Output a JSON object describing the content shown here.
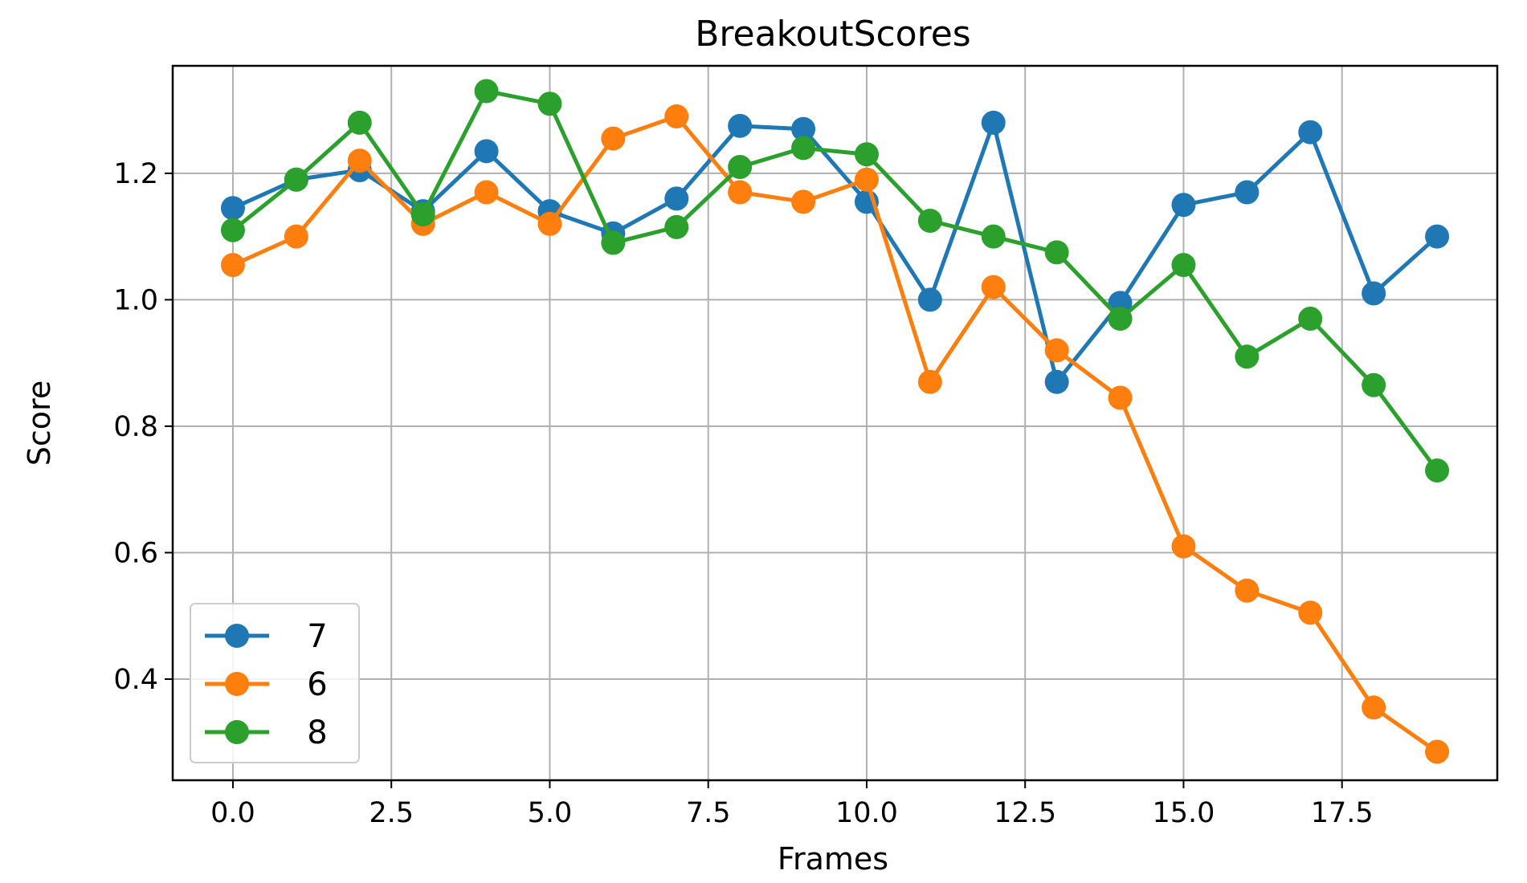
{
  "chart_data": {
    "type": "line",
    "title": "BreakoutScores",
    "xlabel": "Frames",
    "ylabel": "Score",
    "xlim": [
      -0.95,
      19.95
    ],
    "ylim": [
      0.24,
      1.37
    ],
    "xticks": [
      0,
      2.5,
      5,
      7.5,
      10,
      12.5,
      15,
      17.5
    ],
    "xtick_labels": [
      "0.0",
      "2.5",
      "5.0",
      "7.5",
      "10.0",
      "12.5",
      "15.0",
      "17.5"
    ],
    "yticks": [
      0.4,
      0.6,
      0.8,
      1.0,
      1.2
    ],
    "ytick_labels": [
      "0.4",
      "0.6",
      "0.8",
      "1.0",
      "1.2"
    ],
    "grid": true,
    "legend_position": "lower-left",
    "x": [
      0,
      1,
      2,
      3,
      4,
      5,
      6,
      7,
      8,
      9,
      10,
      11,
      12,
      13,
      14,
      15,
      16,
      17,
      18,
      19
    ],
    "series": [
      {
        "name": "7",
        "color": "#1f77b4",
        "values": [
          1.145,
          1.19,
          1.205,
          1.14,
          1.235,
          1.14,
          1.105,
          1.16,
          1.275,
          1.27,
          1.155,
          1.0,
          1.28,
          0.87,
          0.995,
          1.15,
          1.17,
          1.265,
          1.01,
          1.1
        ]
      },
      {
        "name": "6",
        "color": "#ff7f0e",
        "values": [
          1.055,
          1.1,
          1.22,
          1.12,
          1.17,
          1.12,
          1.255,
          1.29,
          1.17,
          1.155,
          1.19,
          0.87,
          1.02,
          0.92,
          0.845,
          0.61,
          0.54,
          0.505,
          0.355,
          0.285
        ]
      },
      {
        "name": "8",
        "color": "#2ca02c",
        "values": [
          1.11,
          1.19,
          1.28,
          1.135,
          1.33,
          1.31,
          1.09,
          1.115,
          1.21,
          1.24,
          1.23,
          1.125,
          1.1,
          1.075,
          0.97,
          1.055,
          0.91,
          0.97,
          0.865,
          0.73
        ]
      }
    ]
  }
}
